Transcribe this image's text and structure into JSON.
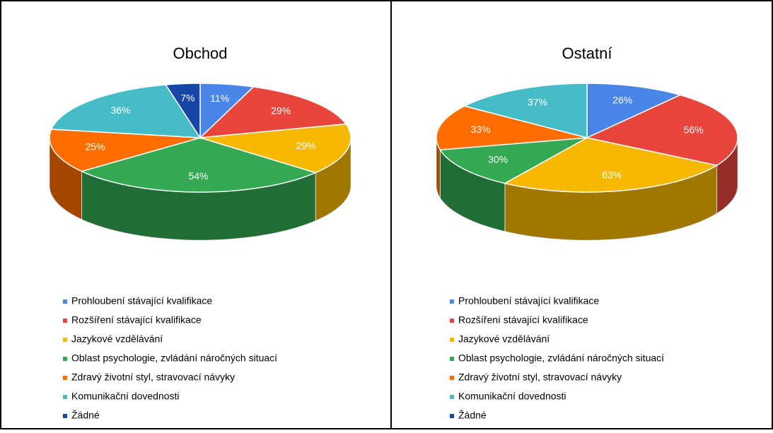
{
  "chart_data": [
    {
      "type": "pie",
      "title": "Obchod",
      "categories": [
        "Prohloubení stávající kvalifikace",
        "Rozšíření stávající kvalifikace",
        "Jazykové vzdělávání",
        "Oblast psychologie, zvládání náročných situací",
        "Zdravý životní styl, stravovací návyky",
        "Komunikační dovednosti",
        "Žádné"
      ],
      "values": [
        11,
        29,
        29,
        54,
        25,
        36,
        7
      ],
      "colors": [
        "#4a86e8",
        "#e8453c",
        "#f6b800",
        "#34a853",
        "#ff6d01",
        "#46bdc6",
        "#1846a8"
      ],
      "legend": "bottom"
    },
    {
      "type": "pie",
      "title": "Ostatní",
      "categories": [
        "Prohloubení stávající kvalifikace",
        "Rozšíření stávající kvalifikace",
        "Jazykové vzdělávání",
        "Oblast psychologie, zvládání náročných situací",
        "Zdravý životní styl, stravovací návyky",
        "Komunikační dovednosti",
        "Žádné"
      ],
      "values": [
        26,
        56,
        63,
        30,
        33,
        37,
        0
      ],
      "colors": [
        "#4a86e8",
        "#e8453c",
        "#f6b800",
        "#34a853",
        "#ff6d01",
        "#46bdc6",
        "#1846a8"
      ],
      "legend": "bottom"
    }
  ]
}
